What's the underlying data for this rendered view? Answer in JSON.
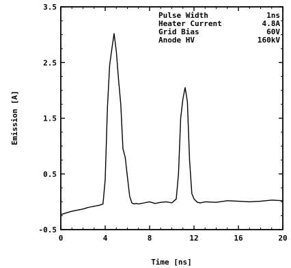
{
  "chart_data": {
    "type": "line",
    "xlabel": "Time [ns]",
    "ylabel": "Emission [A]",
    "xlim": [
      0,
      20
    ],
    "ylim": [
      -0.5,
      3.5
    ],
    "xticks": [
      0,
      4,
      8,
      12,
      16,
      20
    ],
    "xtick_labels": [
      "0",
      "4",
      "8",
      "12",
      "16",
      "20"
    ],
    "yticks": [
      -0.5,
      0.5,
      1.5,
      2.5,
      3.5
    ],
    "ytick_labels": [
      "-0.5",
      "0.5",
      "1.5",
      "2.5",
      "3.5"
    ],
    "grid": false,
    "annotations": [
      {
        "label": "Pulse Width",
        "value": "1ns"
      },
      {
        "label": "Heater Current",
        "value": "4.8A"
      },
      {
        "label": "Grid Bias",
        "value": "60V"
      },
      {
        "label": "Anode HV",
        "value": "160kV"
      }
    ],
    "series": [
      {
        "x": [
          0.0,
          0.5,
          1.0,
          1.5,
          2.0,
          2.5,
          3.0,
          3.5,
          3.8,
          4.0,
          4.2,
          4.4,
          4.6,
          4.8,
          5.0,
          5.2,
          5.4,
          5.6,
          5.8,
          6.0,
          6.2,
          6.4,
          6.6,
          6.8,
          7.0,
          7.5,
          8.0,
          8.5,
          9.0,
          9.5,
          10.0,
          10.4,
          10.6,
          10.8,
          11.0,
          11.2,
          11.4,
          11.6,
          11.8,
          12.0,
          12.3,
          12.6,
          13.0,
          14.0,
          15.0,
          16.0,
          17.0,
          18.0,
          19.0,
          20.0
        ],
        "y": [
          -0.23,
          -0.2,
          -0.17,
          -0.15,
          -0.13,
          -0.1,
          -0.08,
          -0.06,
          -0.04,
          0.4,
          1.7,
          2.45,
          2.75,
          3.02,
          2.7,
          2.2,
          1.75,
          0.95,
          0.8,
          0.45,
          0.1,
          -0.02,
          -0.04,
          -0.03,
          -0.04,
          -0.02,
          0.0,
          -0.03,
          -0.01,
          0.0,
          -0.02,
          0.05,
          0.5,
          1.5,
          1.85,
          2.05,
          1.8,
          0.75,
          0.15,
          0.05,
          -0.01,
          -0.02,
          0.0,
          -0.01,
          0.02,
          0.01,
          0.0,
          0.01,
          0.03,
          0.02
        ]
      }
    ]
  }
}
